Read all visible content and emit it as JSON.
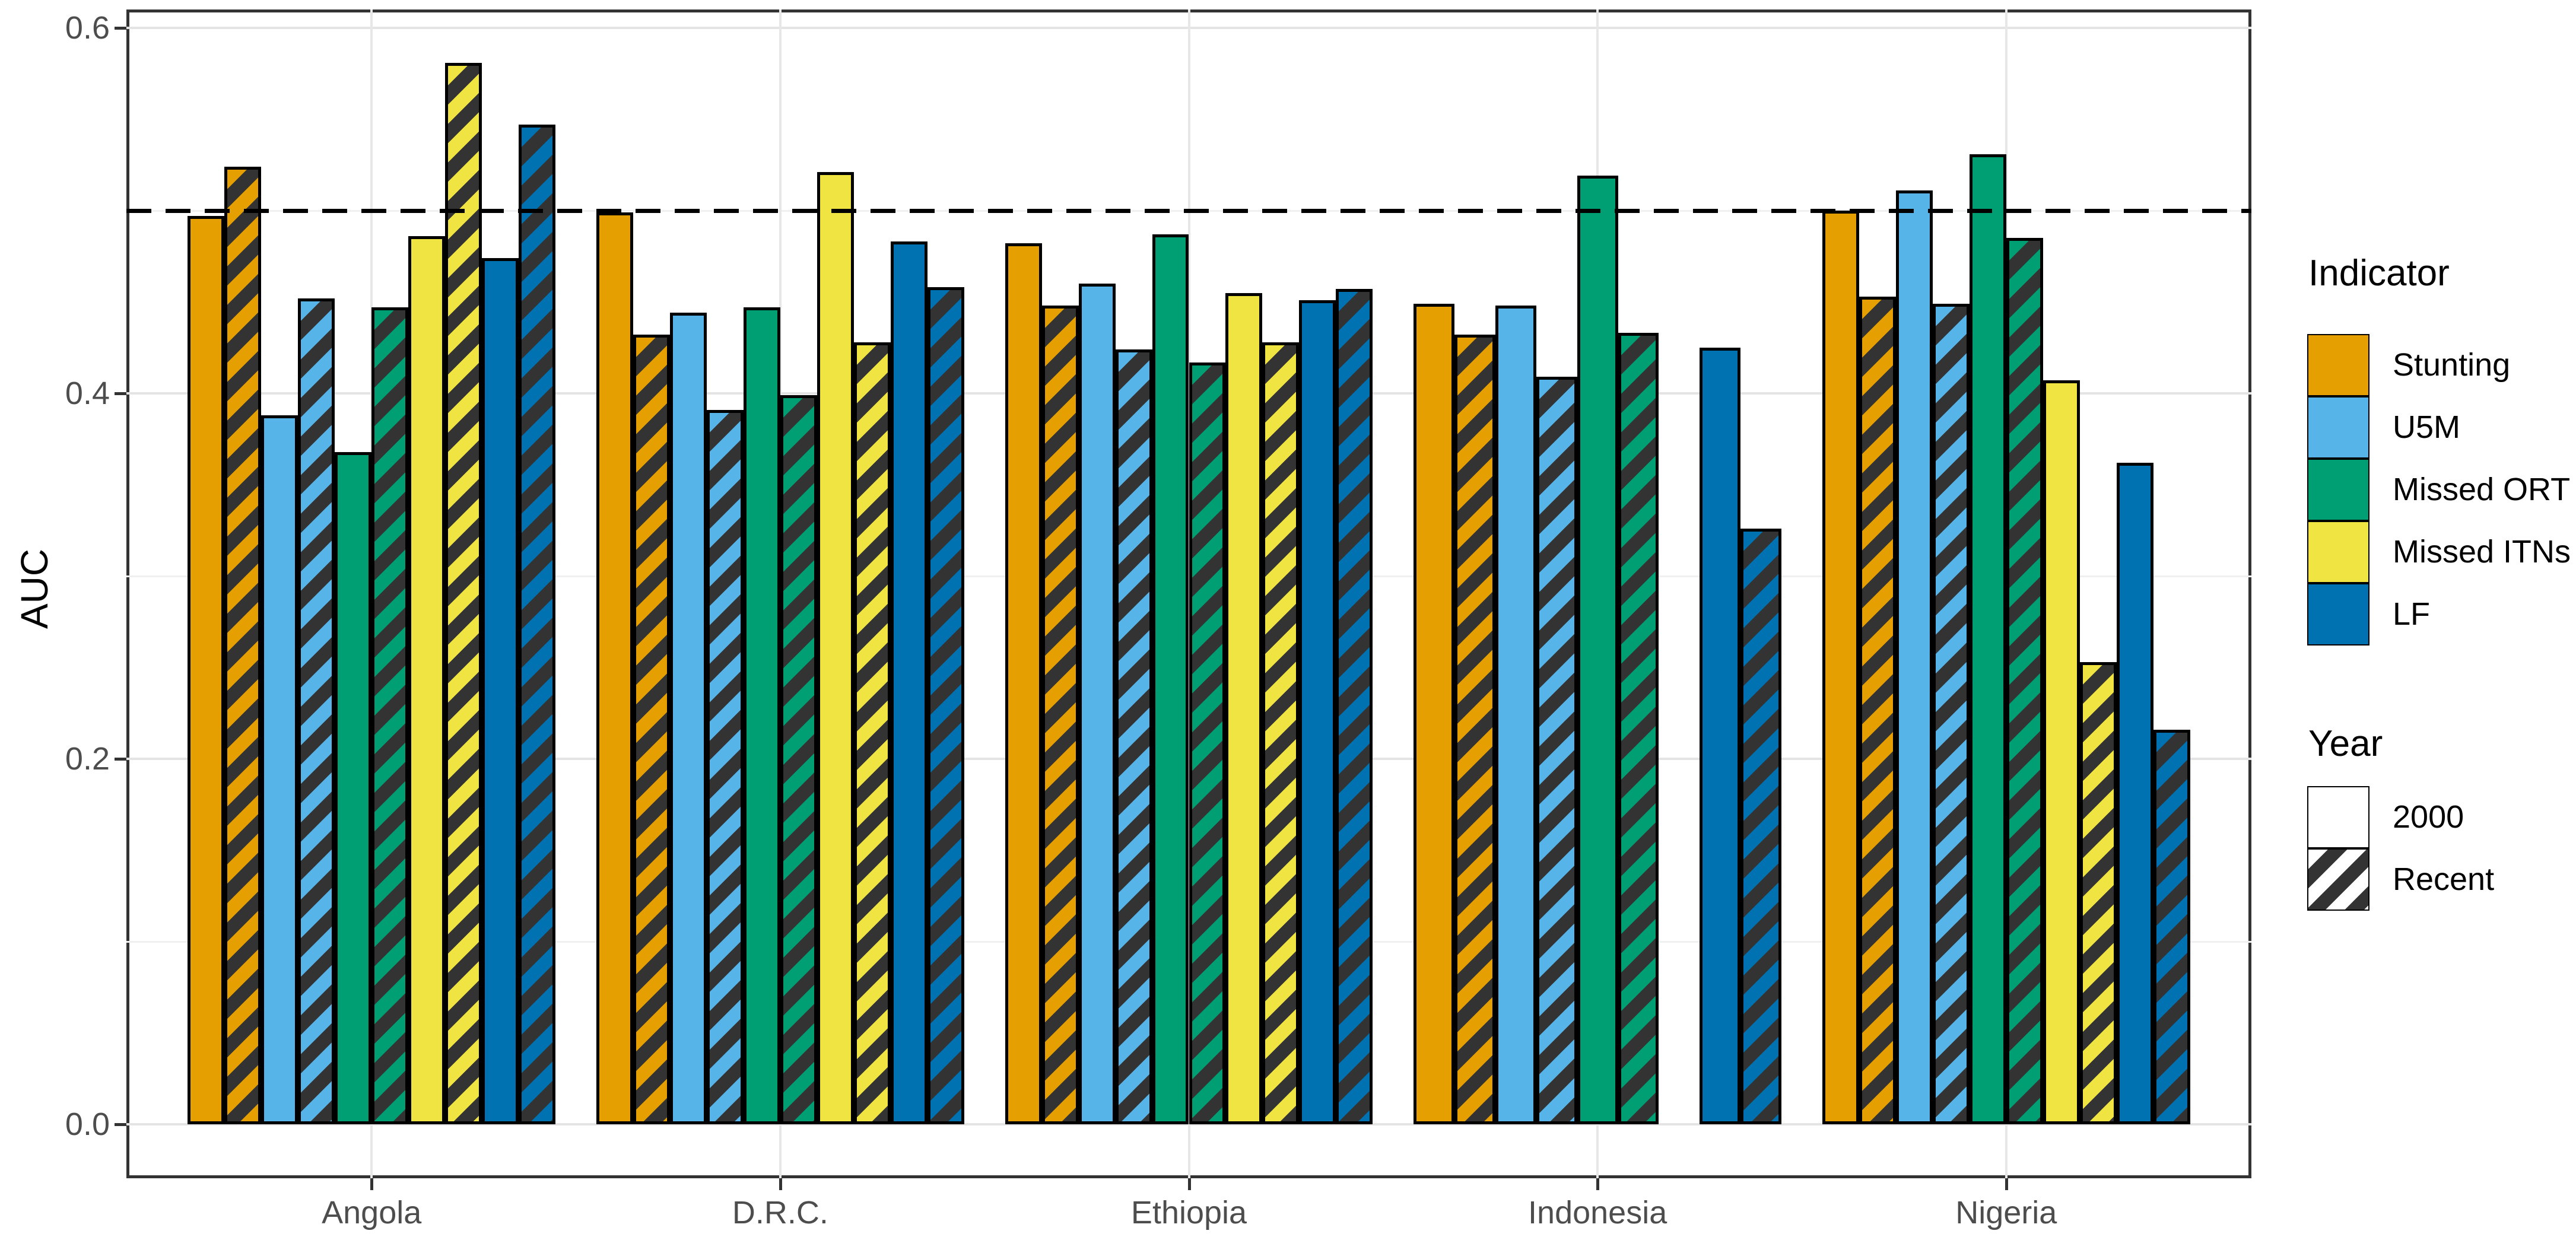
{
  "chart_data": {
    "type": "bar",
    "title": "",
    "xlabel": "",
    "ylabel": "AUC",
    "ylim": [
      0,
      0.6
    ],
    "yticks_major": [
      {
        "value": 0.0,
        "label": "0.0"
      },
      {
        "value": 0.2,
        "label": "0.2"
      },
      {
        "value": 0.4,
        "label": "0.4"
      },
      {
        "value": 0.6,
        "label": "0.6"
      }
    ],
    "yticks_minor": [
      0.1,
      0.3,
      0.5
    ],
    "reference_line": 0.5,
    "grid": true,
    "legend_position": "right",
    "categories": [
      "Angola",
      "D.R.C.",
      "Ethiopia",
      "Indonesia",
      "Nigeria"
    ],
    "indicators": [
      {
        "name": "Stunting",
        "color": "#E69F00"
      },
      {
        "name": "U5M",
        "color": "#56B4E9"
      },
      {
        "name": "Missed ORT",
        "color": "#009E73"
      },
      {
        "name": "Missed ITNs",
        "color": "#F0E442"
      },
      {
        "name": "LF",
        "color": "#0072B2"
      }
    ],
    "years": [
      "2000",
      "Recent"
    ],
    "series": [
      {
        "country": "Angola",
        "values": {
          "Stunting": [
            0.497,
            0.524
          ],
          "U5M": [
            0.388,
            0.452
          ],
          "Missed ORT": [
            0.368,
            0.447
          ],
          "Missed ITNs": [
            0.486,
            0.581
          ],
          "LF": [
            0.474,
            0.547
          ]
        }
      },
      {
        "country": "D.R.C.",
        "values": {
          "Stunting": [
            0.499,
            0.432
          ],
          "U5M": [
            0.444,
            0.391
          ],
          "Missed ORT": [
            0.447,
            0.399
          ],
          "Missed ITNs": [
            0.521,
            0.428
          ],
          "LF": [
            0.483,
            0.458
          ]
        }
      },
      {
        "country": "Ethiopia",
        "values": {
          "Stunting": [
            0.482,
            0.448
          ],
          "U5M": [
            0.46,
            0.424
          ],
          "Missed ORT": [
            0.487,
            0.417
          ],
          "Missed ITNs": [
            0.455,
            0.428
          ],
          "LF": [
            0.451,
            0.457
          ]
        }
      },
      {
        "country": "Indonesia",
        "values": {
          "Stunting": [
            0.449,
            0.432
          ],
          "U5M": [
            0.448,
            0.409
          ],
          "Missed ORT": [
            0.519,
            0.433
          ],
          "Missed ITNs": [
            null,
            null
          ],
          "LF": [
            0.425,
            0.326
          ]
        }
      },
      {
        "country": "Nigeria",
        "values": {
          "Stunting": [
            0.5,
            0.453
          ],
          "U5M": [
            0.511,
            0.449
          ],
          "Missed ORT": [
            0.531,
            0.485
          ],
          "Missed ITNs": [
            0.407,
            0.253
          ],
          "LF": [
            0.362,
            0.216
          ]
        }
      }
    ]
  },
  "legend": {
    "indicator_title": "Indicator",
    "year_title": "Year",
    "year_entries": [
      {
        "label": "2000",
        "pattern": "solid-white"
      },
      {
        "label": "Recent",
        "pattern": "hatched"
      }
    ]
  },
  "style": {
    "hatch_color": "#333333",
    "bar_outline": "#000000",
    "panel_border": "#333333",
    "axis_text_color": "#4d4d4d",
    "ref_line_color": "#000000"
  }
}
